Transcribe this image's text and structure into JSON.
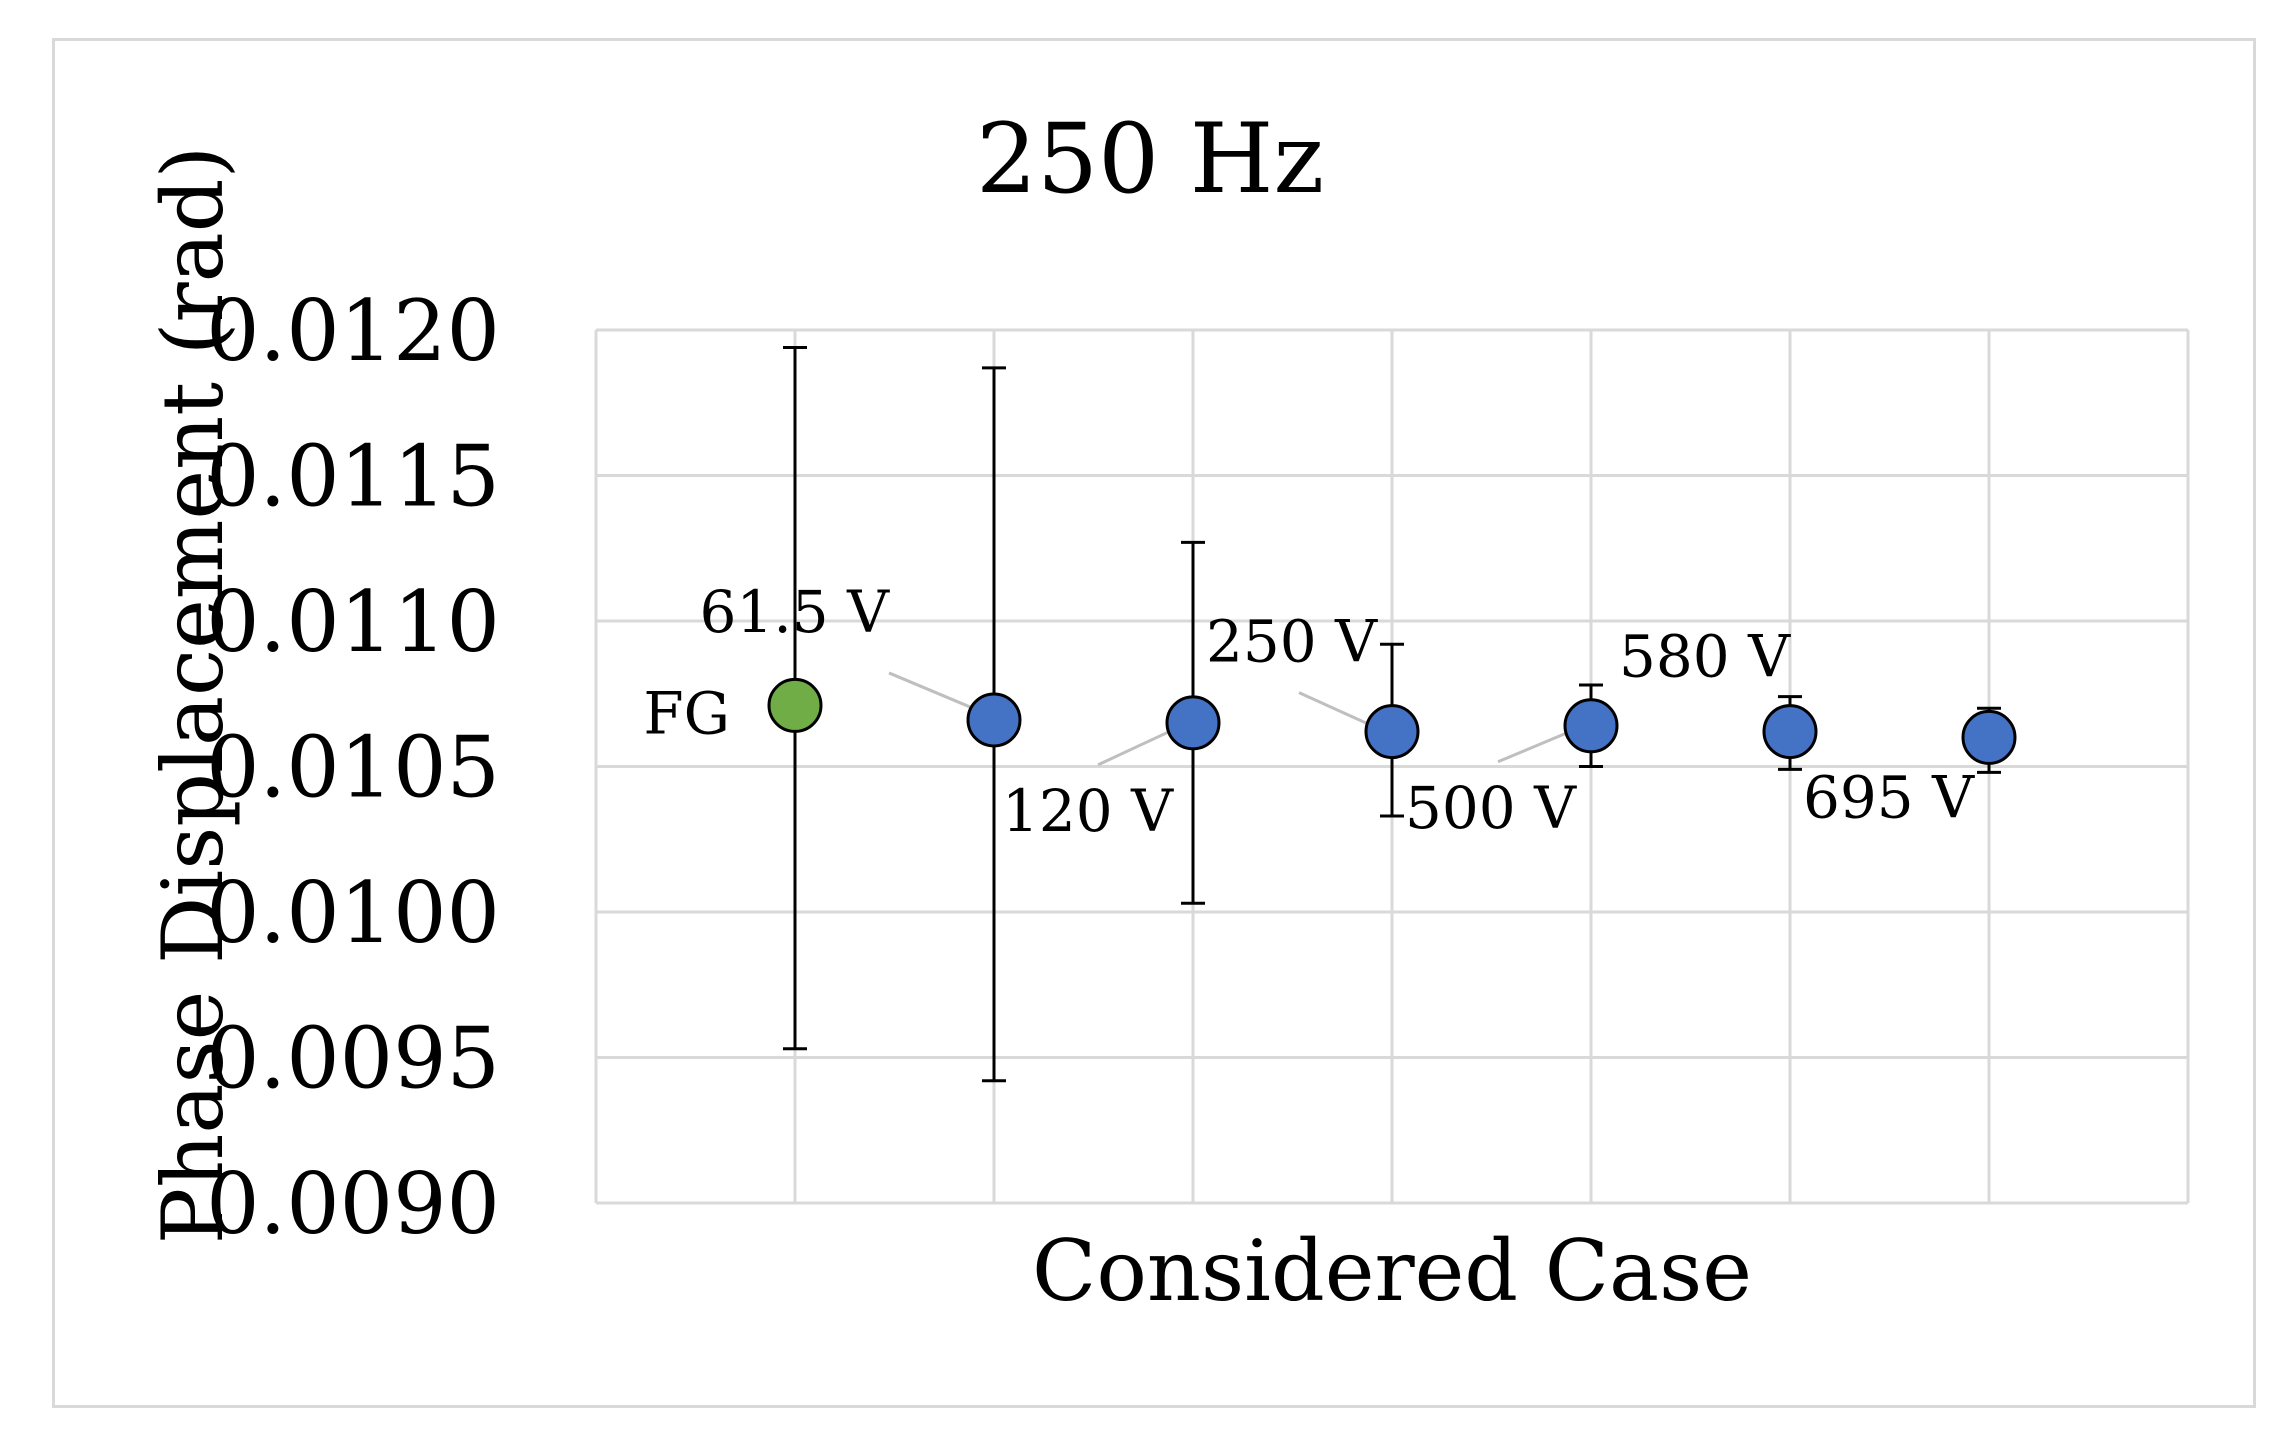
{
  "chart_data": {
    "type": "scatter",
    "title": "250 Hz",
    "xlabel": "Considered Case",
    "ylabel": "Phase Displacement (rad)",
    "ylim": [
      0.009,
      0.012
    ],
    "yticks": [
      "0.0120",
      "0.0115",
      "0.0110",
      "0.0105",
      "0.0100",
      "0.0095",
      "0.0090"
    ],
    "grid": true,
    "points": [
      {
        "label": "FG",
        "y": 0.01071,
        "err_low": 0.00953,
        "err_high": 0.01194,
        "color": "#70ad47"
      },
      {
        "label": "61.5 V",
        "y": 0.01066,
        "err_low": 0.00942,
        "err_high": 0.01187,
        "color": "#4472c4"
      },
      {
        "label": "120 V",
        "y": 0.01065,
        "err_low": 0.01003,
        "err_high": 0.01127,
        "color": "#4472c4"
      },
      {
        "label": "250 V",
        "y": 0.01062,
        "err_low": 0.01033,
        "err_high": 0.01092,
        "color": "#4472c4"
      },
      {
        "label": "500 V",
        "y": 0.01064,
        "err_low": 0.0105,
        "err_high": 0.01078,
        "color": "#4472c4"
      },
      {
        "label": "580 V",
        "y": 0.01062,
        "err_low": 0.01049,
        "err_high": 0.01074,
        "color": "#4472c4"
      },
      {
        "label": "695 V",
        "y": 0.0106,
        "err_low": 0.01048,
        "err_high": 0.0107,
        "color": "#4472c4"
      }
    ]
  }
}
